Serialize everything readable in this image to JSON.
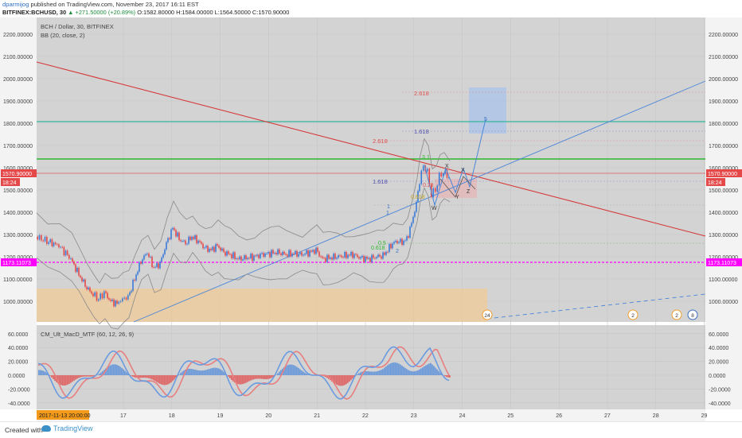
{
  "publish": {
    "author": "dparmijog",
    "text": " published on TradingView.com, November 23, 2017 16:11 EST"
  },
  "ohlc": {
    "symbol": "BITFINEX:BCHUSD, 30",
    "change": "▲ +271.50000 (+20.89%)",
    "o_label": "O:",
    "o": "1582.80000",
    "h_label": "H:",
    "h": "1584.00000",
    "l_label": "L:",
    "l": "1564.50000",
    "c_label": "C:",
    "c": "1570.90000"
  },
  "legend": {
    "title": "BCH / Dollar, 30, BITFINEX",
    "indicator": "BB (20, close, 2)"
  },
  "macd_legend": "CM_Ult_MacD_MTF (60, 12, 26, 9)",
  "price_axis": [
    "2200.00000",
    "2100.00000",
    "2000.00000",
    "1900.00000",
    "1800.00000",
    "1700.00000",
    "1600.00000",
    "1500.00000",
    "1400.00000",
    "1300.00000",
    "1200.00000",
    "1100.00000",
    "1000.00000"
  ],
  "current_price": "1570.90000",
  "countdown": "18:24",
  "hline_price": "1173.11073",
  "macd_axis": [
    "60.0000",
    "40.0000",
    "20.0000",
    "0.0000",
    "-20.0000",
    "-40.0000"
  ],
  "time_axis": [
    "17",
    "18",
    "19",
    "20",
    "21",
    "22",
    "23",
    "24",
    "25",
    "26",
    "27",
    "28",
    "29"
  ],
  "time_badge": "2017-11-13 20:00:00",
  "fib_labels": [
    "2.618",
    "1.618",
    "2.618",
    "1.618",
    "0.23",
    "0.618",
    "0.5",
    "0.618"
  ],
  "wave_labels": {
    "w1": "1",
    "w2": "2",
    "w3": "3",
    "w3b": "1",
    "x": "X",
    "x2": "X",
    "y": "Y",
    "z": "Z",
    "w": "W",
    "five": "5",
    "small1": "1"
  },
  "event_badges": [
    "24",
    "2",
    "2",
    "8"
  ],
  "footer": {
    "created": "Created with",
    "brand": "TradingView"
  },
  "colors": {
    "up": "#3b7bd8",
    "down": "#e54848",
    "grid": "#d9d9d9",
    "accent": "#ff00ff",
    "trend": "#d63a3a",
    "green": "#2eb82e",
    "teal": "#33b59c"
  }
}
